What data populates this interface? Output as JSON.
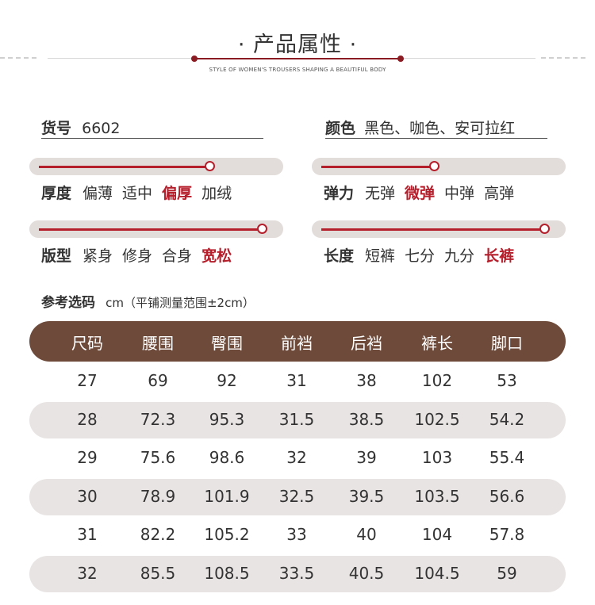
{
  "header": {
    "title": "· 产品属性 ·",
    "subtitle": "STYLE OF WOMEN'S TROUSERS SHAPING A BEAUTIFUL BODY"
  },
  "item": {
    "key": "货号",
    "value": "6602"
  },
  "color": {
    "key": "颜色",
    "value": "黑色、咖色、安可拉红"
  },
  "attributes": [
    {
      "key": "厚度",
      "options": [
        "偏薄",
        "适中",
        "偏厚",
        "加绒"
      ],
      "selected": 2,
      "level": 0.74
    },
    {
      "key": "弹力",
      "options": [
        "无弹",
        "微弹",
        "中弹",
        "高弹"
      ],
      "selected": 1,
      "level": 0.49
    },
    {
      "key": "版型",
      "options": [
        "紧身",
        "修身",
        "合身",
        "宽松"
      ],
      "selected": 3,
      "level": 0.97
    },
    {
      "key": "长度",
      "options": [
        "短裤",
        "七分",
        "九分",
        "长裤"
      ],
      "selected": 3,
      "level": 0.97
    }
  ],
  "reference": {
    "title": "参考选码",
    "unit": "cm（平铺测量范围±2cm）"
  },
  "table": {
    "headers": [
      "尺码",
      "腰围",
      "臀围",
      "前裆",
      "后裆",
      "裤长",
      "脚口"
    ],
    "rows": [
      [
        "27",
        "69",
        "92",
        "31",
        "38",
        "102",
        "53"
      ],
      [
        "28",
        "72.3",
        "95.3",
        "31.5",
        "38.5",
        "102.5",
        "54.2"
      ],
      [
        "29",
        "75.6",
        "98.6",
        "32",
        "39",
        "103",
        "55.4"
      ],
      [
        "30",
        "78.9",
        "101.9",
        "32.5",
        "39.5",
        "103.5",
        "56.6"
      ],
      [
        "31",
        "82.2",
        "105.2",
        "33",
        "40",
        "104",
        "57.8"
      ],
      [
        "32",
        "85.5",
        "108.5",
        "33.5",
        "40.5",
        "104.5",
        "59"
      ]
    ]
  },
  "colors": {
    "accent": "#b51f2c",
    "header_bar": "#6e4a3a",
    "stripe": "#e8e4e3",
    "track": "#e2dcda"
  }
}
